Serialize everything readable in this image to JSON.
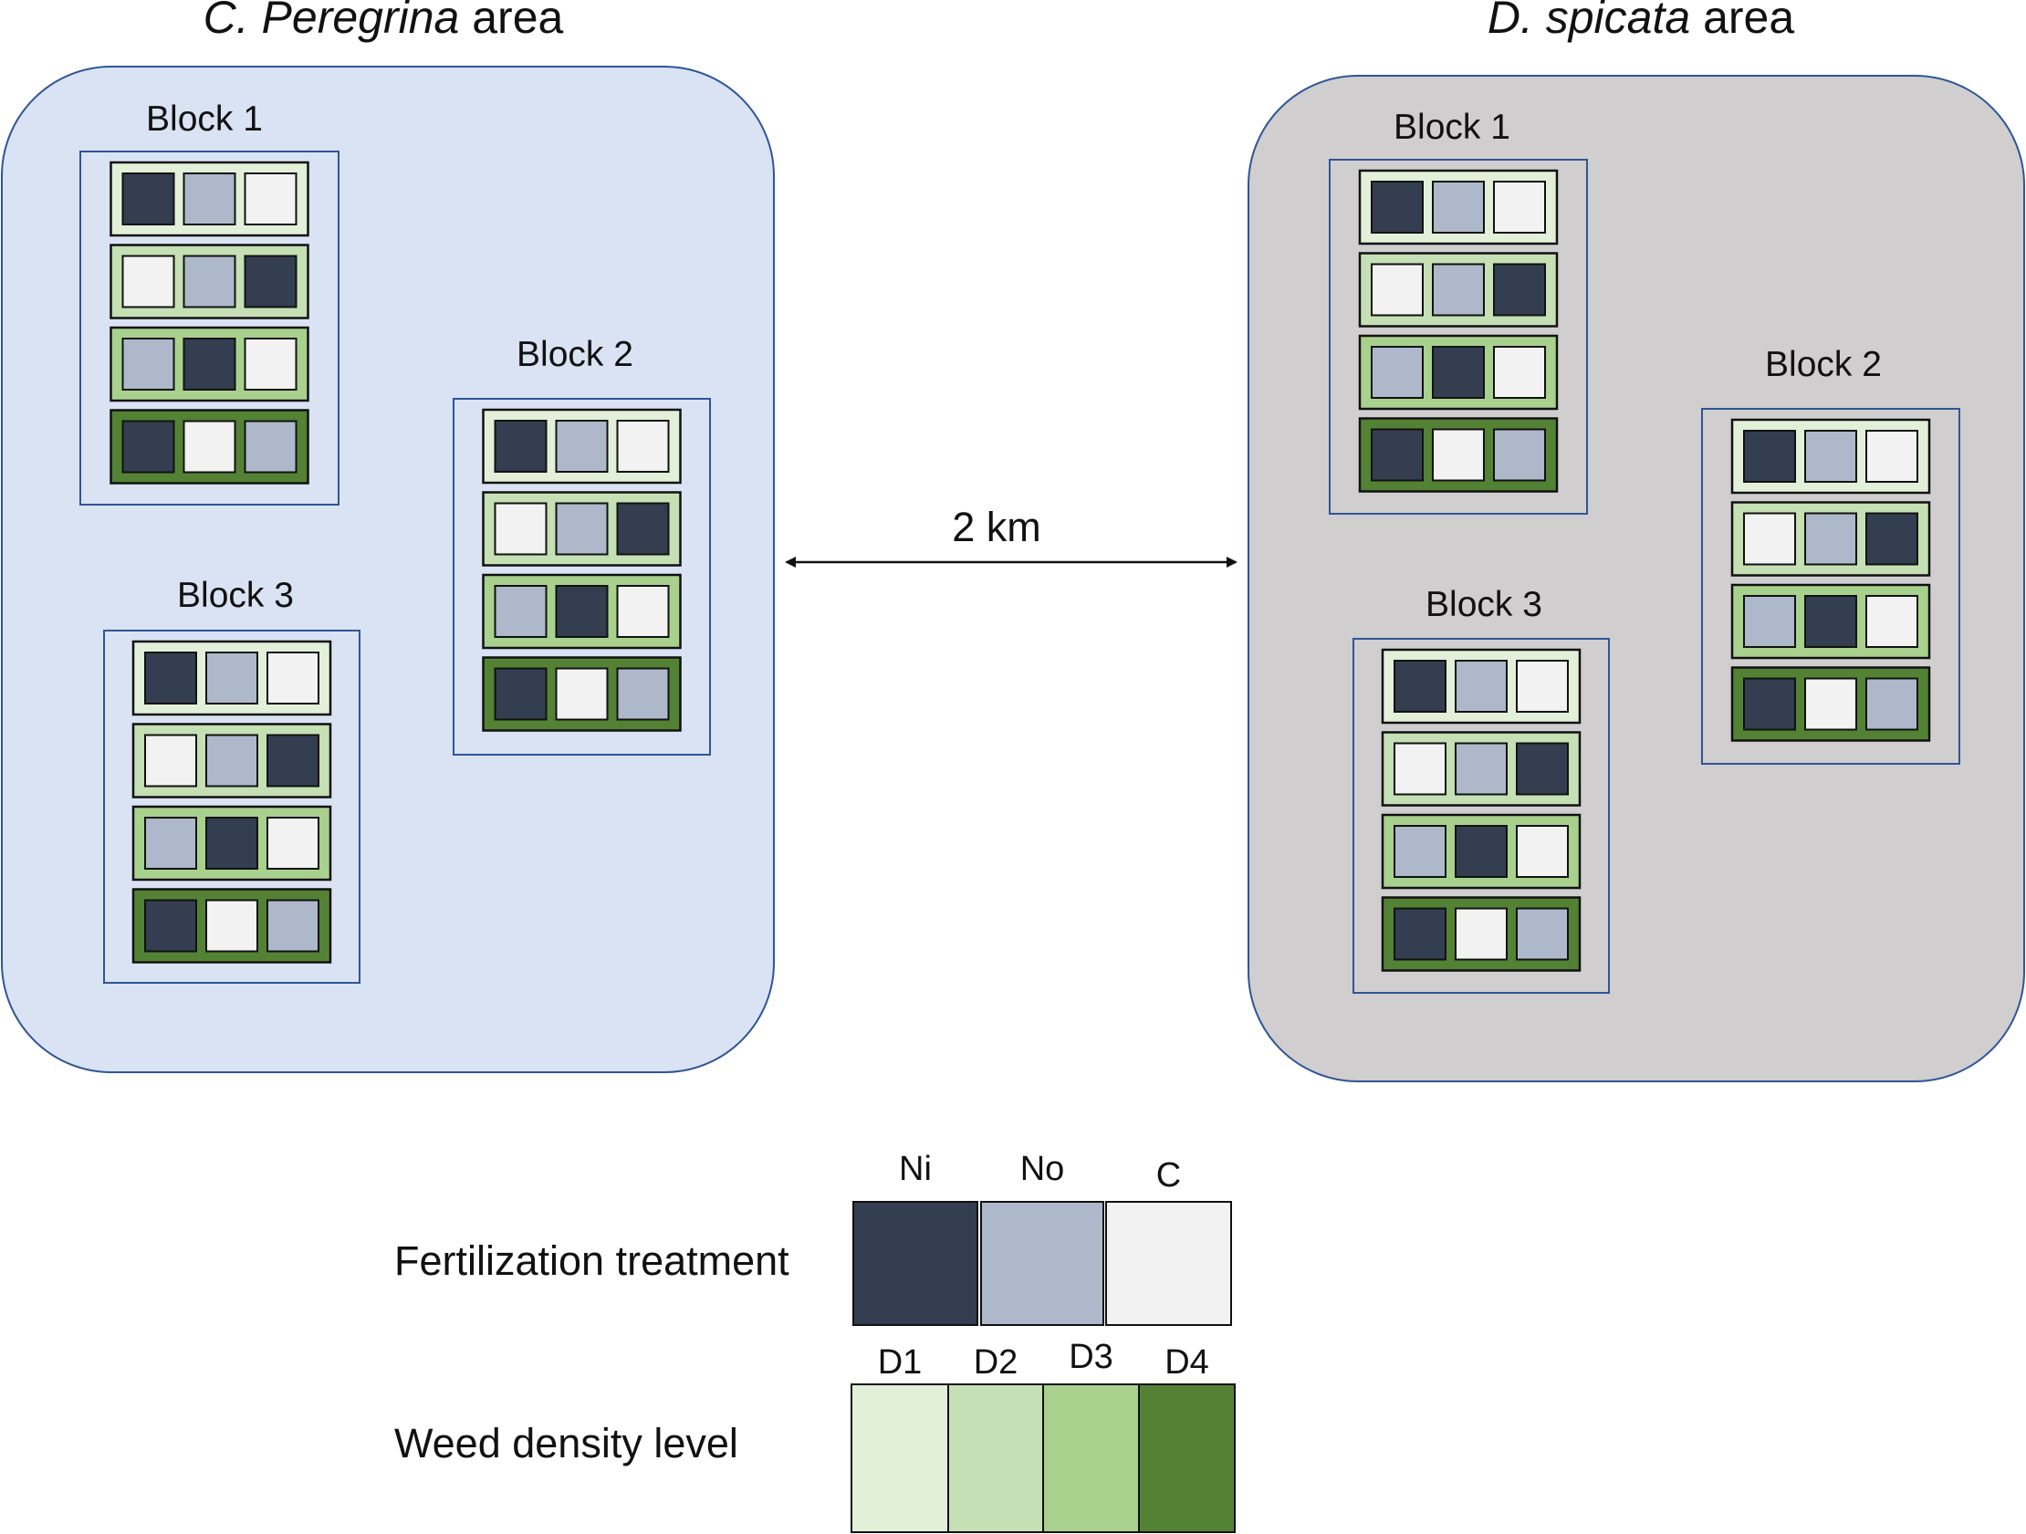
{
  "colors": {
    "treatment": {
      "Ni": "#333f50",
      "No": "#adb9ca",
      "C": "#f2f2f2"
    },
    "density": {
      "D1": "#e2f0d9",
      "D2": "#c5e0b4",
      "D3": "#a9d18e",
      "D4": "#548235"
    },
    "cperegrina_area_bg": "#dae3f3",
    "dspicata_area_bg": "#d0cece",
    "area_border": "#2f5597",
    "block_border": "#2f5597"
  },
  "areas": [
    {
      "id": "cperegrina",
      "title_species": "C. Peregrina",
      "title_suffix": " area",
      "blocks": [
        {
          "label": "Block 1",
          "rows": [
            [
              "Ni",
              "No",
              "C"
            ],
            [
              "C",
              "No",
              "Ni"
            ],
            [
              "No",
              "Ni",
              "C"
            ],
            [
              "Ni",
              "C",
              "No"
            ]
          ]
        },
        {
          "label": "Block 2",
          "rows": [
            [
              "Ni",
              "No",
              "C"
            ],
            [
              "C",
              "No",
              "Ni"
            ],
            [
              "No",
              "Ni",
              "C"
            ],
            [
              "Ni",
              "C",
              "No"
            ]
          ]
        },
        {
          "label": "Block 3",
          "rows": [
            [
              "Ni",
              "No",
              "C"
            ],
            [
              "C",
              "No",
              "Ni"
            ],
            [
              "No",
              "Ni",
              "C"
            ],
            [
              "Ni",
              "C",
              "No"
            ]
          ]
        }
      ]
    },
    {
      "id": "dspicata",
      "title_species": "D. spicata",
      "title_suffix": " area",
      "blocks": [
        {
          "label": "Block 1",
          "rows": [
            [
              "Ni",
              "No",
              "C"
            ],
            [
              "C",
              "No",
              "Ni"
            ],
            [
              "No",
              "Ni",
              "C"
            ],
            [
              "Ni",
              "C",
              "No"
            ]
          ]
        },
        {
          "label": "Block 2",
          "rows": [
            [
              "Ni",
              "No",
              "C"
            ],
            [
              "C",
              "No",
              "Ni"
            ],
            [
              "No",
              "Ni",
              "C"
            ],
            [
              "Ni",
              "C",
              "No"
            ]
          ]
        },
        {
          "label": "Block 3",
          "rows": [
            [
              "Ni",
              "No",
              "C"
            ],
            [
              "C",
              "No",
              "Ni"
            ],
            [
              "No",
              "Ni",
              "C"
            ],
            [
              "Ni",
              "C",
              "No"
            ]
          ]
        }
      ]
    }
  ],
  "row_density_levels": [
    "D1",
    "D2",
    "D3",
    "D4"
  ],
  "distance": {
    "label": "2 km"
  },
  "legend": {
    "fertilization": {
      "label": "Fertilization treatment",
      "items": [
        "Ni",
        "No",
        "C"
      ]
    },
    "density": {
      "label": "Weed density level",
      "items": [
        "D1",
        "D2",
        "D3",
        "D4"
      ]
    }
  }
}
